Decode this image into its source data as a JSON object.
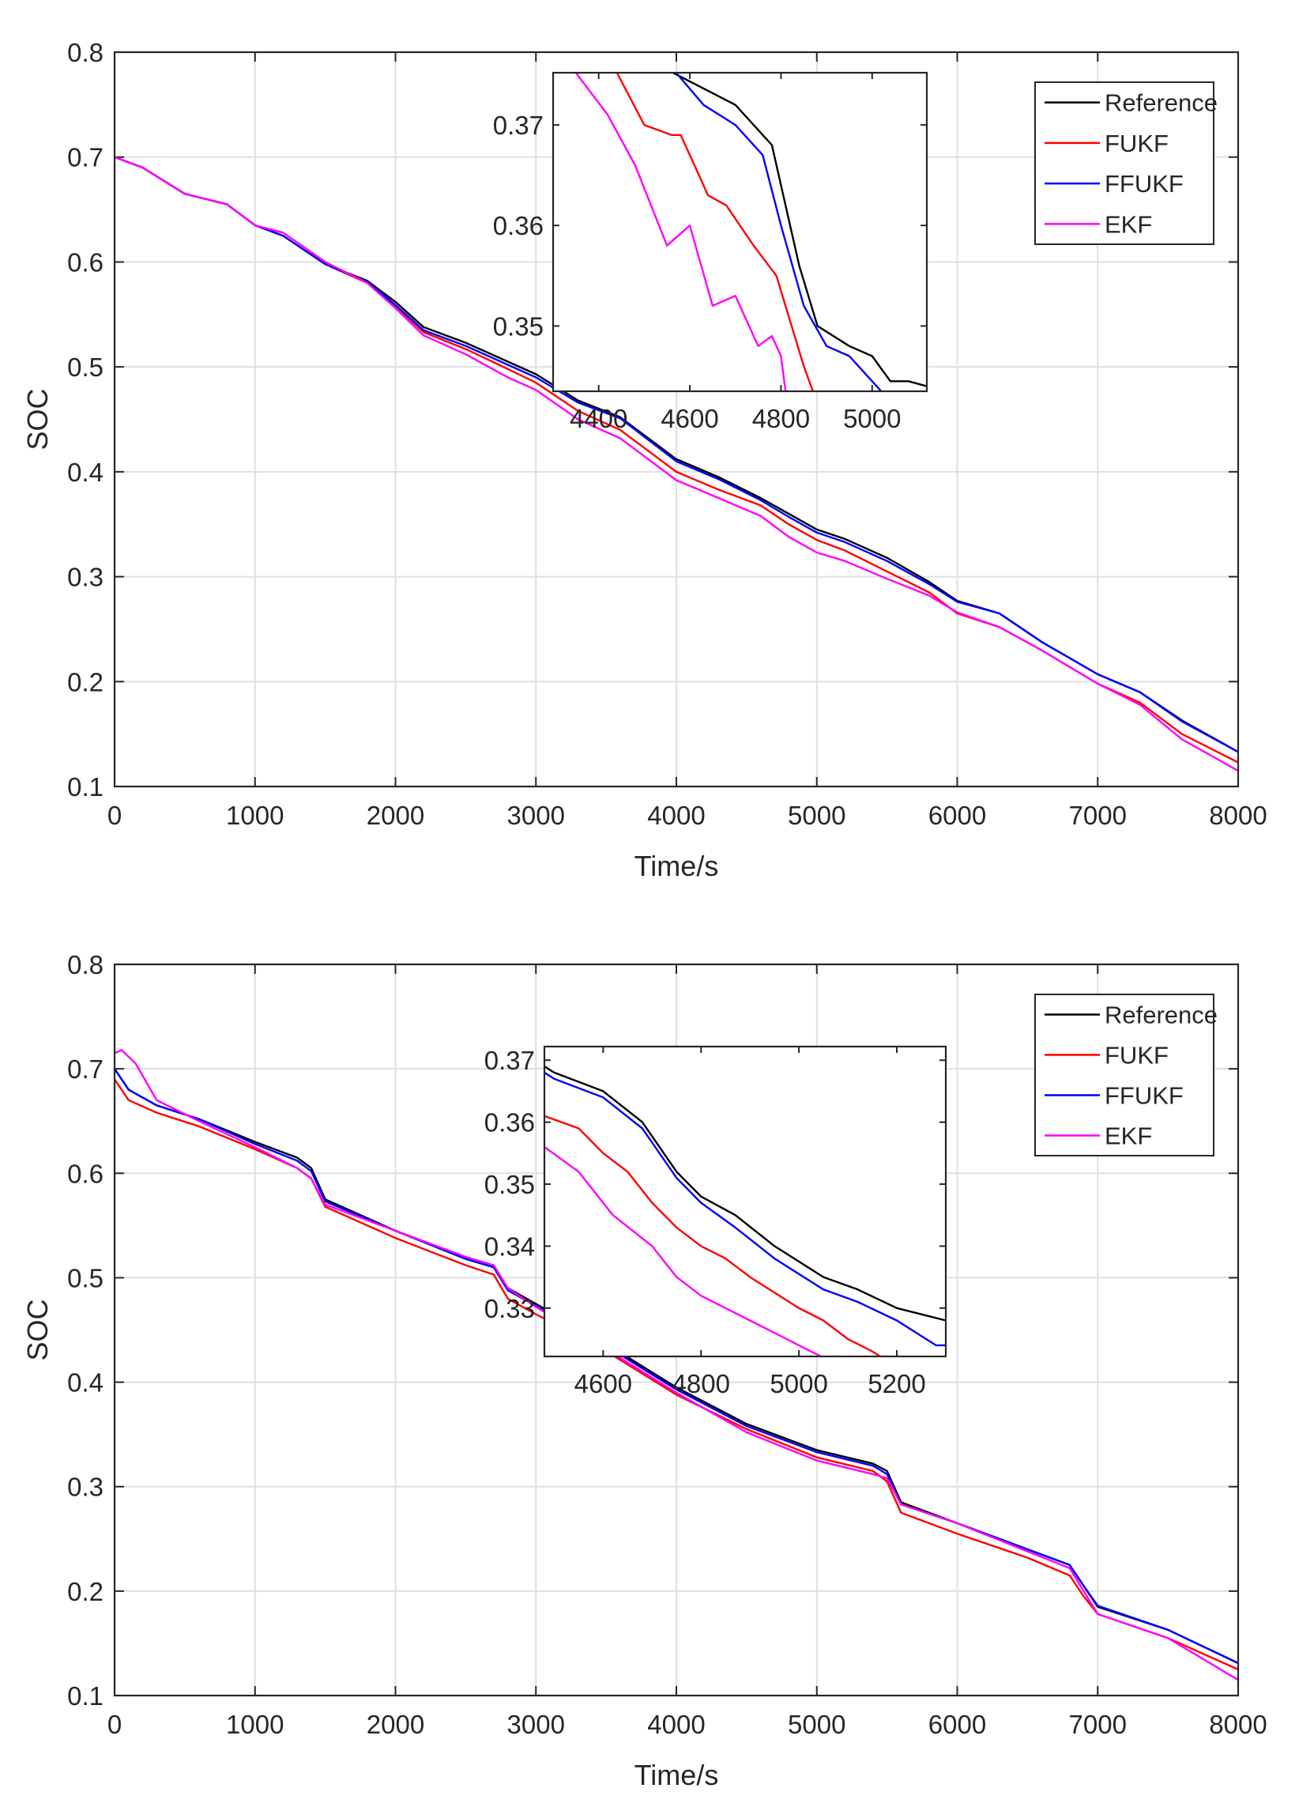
{
  "chart_data": [
    {
      "type": "line",
      "title": "",
      "xlabel": "Time/s",
      "ylabel": "SOC",
      "xlim": [
        0,
        8000
      ],
      "ylim": [
        0.1,
        0.8
      ],
      "xticks": [
        "0",
        "1000",
        "2000",
        "3000",
        "4000",
        "5000",
        "6000",
        "7000",
        "8000"
      ],
      "yticks": [
        "0.1",
        "0.2",
        "0.3",
        "0.4",
        "0.5",
        "0.6",
        "0.7",
        "0.8"
      ],
      "grid": true,
      "legend_position": "top-right",
      "series": [
        {
          "name": "Reference",
          "color": "#000000",
          "x": [
            0,
            200,
            500,
            800,
            1000,
            1200,
            1500,
            1800,
            2000,
            2200,
            2500,
            2800,
            3000,
            3300,
            3600,
            4000,
            4300,
            4600,
            4800,
            5000,
            5200,
            5500,
            5800,
            6000,
            6300,
            6600,
            7000,
            7300,
            7600,
            8000
          ],
          "y": [
            0.7,
            0.69,
            0.665,
            0.655,
            0.635,
            0.625,
            0.598,
            0.582,
            0.562,
            0.538,
            0.523,
            0.505,
            0.493,
            0.468,
            0.452,
            0.412,
            0.395,
            0.375,
            0.36,
            0.345,
            0.336,
            0.318,
            0.295,
            0.277,
            0.265,
            0.238,
            0.207,
            0.19,
            0.163,
            0.133
          ]
        },
        {
          "name": "FUKF",
          "color": "#ff0000",
          "x": [
            0,
            200,
            500,
            800,
            1000,
            1200,
            1500,
            1800,
            2000,
            2200,
            2500,
            2800,
            3000,
            3300,
            3600,
            4000,
            4300,
            4600,
            4800,
            5000,
            5200,
            5500,
            5800,
            6000,
            6300,
            6600,
            7000,
            7300,
            7600,
            8000
          ],
          "y": [
            0.7,
            0.69,
            0.665,
            0.655,
            0.635,
            0.625,
            0.598,
            0.58,
            0.558,
            0.533,
            0.517,
            0.498,
            0.485,
            0.458,
            0.44,
            0.4,
            0.383,
            0.368,
            0.35,
            0.335,
            0.325,
            0.305,
            0.285,
            0.265,
            0.252,
            0.23,
            0.198,
            0.18,
            0.15,
            0.123
          ]
        },
        {
          "name": "FFUKF",
          "color": "#0000ff",
          "x": [
            0,
            200,
            500,
            800,
            1000,
            1200,
            1500,
            1800,
            2000,
            2200,
            2500,
            2800,
            3000,
            3300,
            3600,
            4000,
            4300,
            4600,
            4800,
            5000,
            5200,
            5500,
            5800,
            6000,
            6300,
            6600,
            7000,
            7300,
            7600,
            8000
          ],
          "y": [
            0.7,
            0.69,
            0.665,
            0.655,
            0.635,
            0.625,
            0.598,
            0.581,
            0.559,
            0.535,
            0.52,
            0.502,
            0.49,
            0.466,
            0.451,
            0.41,
            0.393,
            0.373,
            0.357,
            0.342,
            0.333,
            0.315,
            0.293,
            0.276,
            0.265,
            0.238,
            0.207,
            0.19,
            0.162,
            0.133
          ]
        },
        {
          "name": "EKF",
          "color": "#ff00ff",
          "x": [
            0,
            200,
            500,
            800,
            1000,
            1200,
            1500,
            1800,
            2000,
            2200,
            2500,
            2800,
            3000,
            3300,
            3600,
            4000,
            4300,
            4600,
            4800,
            5000,
            5200,
            5500,
            5800,
            6000,
            6300,
            6600,
            7000,
            7300,
            7600,
            8000
          ],
          "y": [
            0.7,
            0.69,
            0.665,
            0.655,
            0.635,
            0.628,
            0.6,
            0.58,
            0.556,
            0.53,
            0.512,
            0.49,
            0.478,
            0.45,
            0.432,
            0.392,
            0.375,
            0.358,
            0.338,
            0.323,
            0.315,
            0.298,
            0.282,
            0.266,
            0.252,
            0.23,
            0.198,
            0.178,
            0.145,
            0.115
          ]
        }
      ],
      "inset": {
        "xlim": [
          4300,
          5120
        ],
        "ylim": [
          0.3435,
          0.3752
        ],
        "xticks": [
          "4400",
          "4600",
          "4800",
          "5000"
        ],
        "yticks": [
          "0.35",
          "0.36",
          "0.37"
        ],
        "series": [
          {
            "name": "Reference",
            "x": [
              4300,
              4550,
              4700,
              4780,
              4840,
              4880,
              4950,
              5000,
              5040,
              5080,
              5120
            ],
            "y": [
              0.383,
              0.3755,
              0.372,
              0.368,
              0.356,
              0.35,
              0.348,
              0.347,
              0.3445,
              0.3445,
              0.344
            ]
          },
          {
            "name": "FUKF",
            "x": [
              4300,
              4440,
              4500,
              4560,
              4580,
              4640,
              4680,
              4740,
              4790,
              4850,
              4870
            ],
            "y": [
              0.378,
              0.3752,
              0.37,
              0.369,
              0.369,
              0.363,
              0.362,
              0.358,
              0.355,
              0.346,
              0.3435
            ]
          },
          {
            "name": "FFUKF",
            "x": [
              4300,
              4570,
              4630,
              4700,
              4760,
              4800,
              4850,
              4900,
              4950,
              4990,
              5020
            ],
            "y": [
              0.383,
              0.3752,
              0.372,
              0.37,
              0.367,
              0.36,
              0.352,
              0.348,
              0.347,
              0.345,
              0.3435
            ]
          },
          {
            "name": "EKF",
            "x": [
              4300,
              4350,
              4420,
              4480,
              4550,
              4600,
              4650,
              4700,
              4750,
              4780,
              4800,
              4810
            ],
            "y": [
              0.3775,
              0.3752,
              0.371,
              0.366,
              0.358,
              0.36,
              0.352,
              0.353,
              0.348,
              0.349,
              0.347,
              0.3435
            ]
          }
        ]
      }
    },
    {
      "type": "line",
      "title": "",
      "xlabel": "Time/s",
      "ylabel": "SOC",
      "xlim": [
        0,
        8000
      ],
      "ylim": [
        0.1,
        0.8
      ],
      "xticks": [
        "0",
        "1000",
        "2000",
        "3000",
        "4000",
        "5000",
        "6000",
        "7000",
        "8000"
      ],
      "yticks": [
        "0.1",
        "0.2",
        "0.3",
        "0.4",
        "0.5",
        "0.6",
        "0.7",
        "0.8"
      ],
      "grid": true,
      "legend_position": "top-right",
      "series": [
        {
          "name": "Reference",
          "color": "#000000",
          "x": [
            0,
            100,
            300,
            600,
            1000,
            1300,
            1400,
            1500,
            2000,
            2500,
            2700,
            2800,
            3000,
            3400,
            4000,
            4500,
            5000,
            5400,
            5500,
            5600,
            6000,
            6500,
            6800,
            6900,
            7000,
            7500,
            8000
          ],
          "y": [
            0.7,
            0.68,
            0.665,
            0.652,
            0.63,
            0.615,
            0.605,
            0.575,
            0.545,
            0.518,
            0.51,
            0.49,
            0.475,
            0.445,
            0.395,
            0.36,
            0.335,
            0.322,
            0.315,
            0.285,
            0.265,
            0.24,
            0.225,
            0.205,
            0.185,
            0.163,
            0.131
          ]
        },
        {
          "name": "FUKF",
          "color": "#ff0000",
          "x": [
            0,
            100,
            300,
            600,
            1000,
            1300,
            1400,
            1500,
            2000,
            2500,
            2700,
            2800,
            3000,
            3400,
            4000,
            4500,
            5000,
            5400,
            5500,
            5600,
            6000,
            6500,
            6800,
            6900,
            7000,
            7500,
            8000
          ],
          "y": [
            0.69,
            0.67,
            0.658,
            0.645,
            0.623,
            0.605,
            0.595,
            0.568,
            0.538,
            0.512,
            0.503,
            0.48,
            0.465,
            0.438,
            0.388,
            0.355,
            0.328,
            0.315,
            0.305,
            0.275,
            0.255,
            0.232,
            0.215,
            0.195,
            0.178,
            0.155,
            0.125
          ]
        },
        {
          "name": "FFUKF",
          "color": "#0000ff",
          "x": [
            0,
            100,
            300,
            600,
            1000,
            1300,
            1400,
            1500,
            2000,
            2500,
            2700,
            2800,
            3000,
            3400,
            4000,
            4500,
            5000,
            5400,
            5500,
            5600,
            6000,
            6500,
            6800,
            6900,
            7000,
            7500,
            8000
          ],
          "y": [
            0.7,
            0.68,
            0.665,
            0.652,
            0.628,
            0.612,
            0.602,
            0.573,
            0.545,
            0.518,
            0.51,
            0.488,
            0.473,
            0.443,
            0.393,
            0.358,
            0.333,
            0.32,
            0.312,
            0.283,
            0.265,
            0.24,
            0.225,
            0.205,
            0.186,
            0.163,
            0.131
          ]
        },
        {
          "name": "EKF",
          "color": "#ff00ff",
          "x": [
            0,
            50,
            150,
            300,
            600,
            1000,
            1300,
            1400,
            1500,
            2000,
            2500,
            2700,
            2800,
            3000,
            3400,
            4000,
            4500,
            5000,
            5400,
            5500,
            5600,
            6000,
            6500,
            6800,
            6900,
            7000,
            7500,
            8000
          ],
          "y": [
            0.715,
            0.718,
            0.705,
            0.67,
            0.65,
            0.625,
            0.605,
            0.595,
            0.57,
            0.545,
            0.52,
            0.512,
            0.49,
            0.472,
            0.44,
            0.39,
            0.352,
            0.325,
            0.312,
            0.308,
            0.283,
            0.265,
            0.238,
            0.222,
            0.2,
            0.178,
            0.155,
            0.115
          ]
        }
      ],
      "inset": {
        "xlim": [
          4480,
          5300
        ],
        "ylim": [
          0.3222,
          0.3722
        ],
        "xticks": [
          "4600",
          "4800",
          "5000",
          "5200"
        ],
        "yticks": [
          "0.33",
          "0.34",
          "0.35",
          "0.36",
          "0.37"
        ],
        "series": [
          {
            "name": "Reference",
            "x": [
              4480,
              4500,
              4600,
              4680,
              4750,
              4800,
              4870,
              4950,
              5050,
              5120,
              5200,
              5300
            ],
            "y": [
              0.369,
              0.368,
              0.365,
              0.36,
              0.352,
              0.348,
              0.345,
              0.34,
              0.335,
              0.333,
              0.33,
              0.328
            ]
          },
          {
            "name": "FUKF",
            "x": [
              4480,
              4550,
              4600,
              4650,
              4700,
              4750,
              4800,
              4850,
              4900,
              5000,
              5050,
              5100,
              5150,
              5170
            ],
            "y": [
              0.361,
              0.359,
              0.355,
              0.352,
              0.347,
              0.343,
              0.34,
              0.338,
              0.335,
              0.33,
              0.328,
              0.325,
              0.323,
              0.322
            ]
          },
          {
            "name": "FFUKF",
            "x": [
              4480,
              4500,
              4600,
              4680,
              4750,
              4800,
              4870,
              4950,
              5050,
              5120,
              5200,
              5280,
              5300
            ],
            "y": [
              0.368,
              0.367,
              0.364,
              0.359,
              0.351,
              0.347,
              0.343,
              0.338,
              0.333,
              0.331,
              0.328,
              0.324,
              0.324
            ]
          },
          {
            "name": "EKF",
            "x": [
              4480,
              4550,
              4620,
              4700,
              4750,
              4800,
              4850,
              4900,
              4950,
              5000,
              5050,
              5080
            ],
            "y": [
              0.356,
              0.352,
              0.345,
              0.34,
              0.335,
              0.332,
              0.33,
              0.328,
              0.326,
              0.324,
              0.322,
              0.3222
            ]
          }
        ]
      }
    }
  ]
}
